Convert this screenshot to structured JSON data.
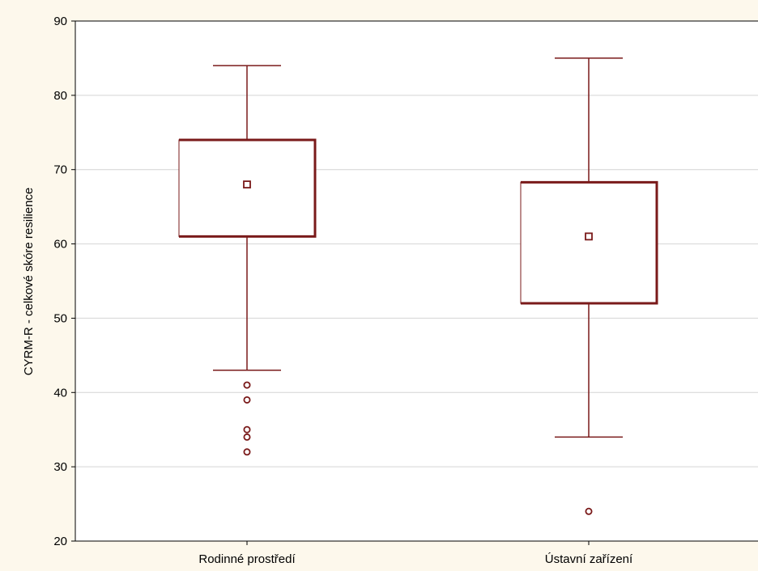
{
  "chart_data": {
    "type": "box",
    "ylabel": "CYRM-R - celkové skóre resilience",
    "xlabel": "",
    "ylim": [
      20,
      90
    ],
    "yticks": [
      20,
      30,
      40,
      50,
      60,
      70,
      80,
      90
    ],
    "grid": true,
    "categories": [
      "Rodinné prostředí",
      "Ústavní zařízení"
    ],
    "boxes": [
      {
        "category": "Rodinné prostředí",
        "whisker_low": 43,
        "q1": 61,
        "median": 68,
        "q3": 74,
        "whisker_high": 84,
        "outliers": [
          41,
          39,
          35,
          34,
          32
        ]
      },
      {
        "category": "Ústavní zařízení",
        "whisker_low": 34,
        "q1": 52,
        "median": 61,
        "q3": 68.3,
        "whisker_high": 85,
        "outliers": [
          24
        ]
      }
    ]
  },
  "colors": {
    "background": "#fdf8ec",
    "plot": "#ffffff",
    "series": "#7a1a1a",
    "grid": "#d4d4d4",
    "axis": "#000000"
  }
}
